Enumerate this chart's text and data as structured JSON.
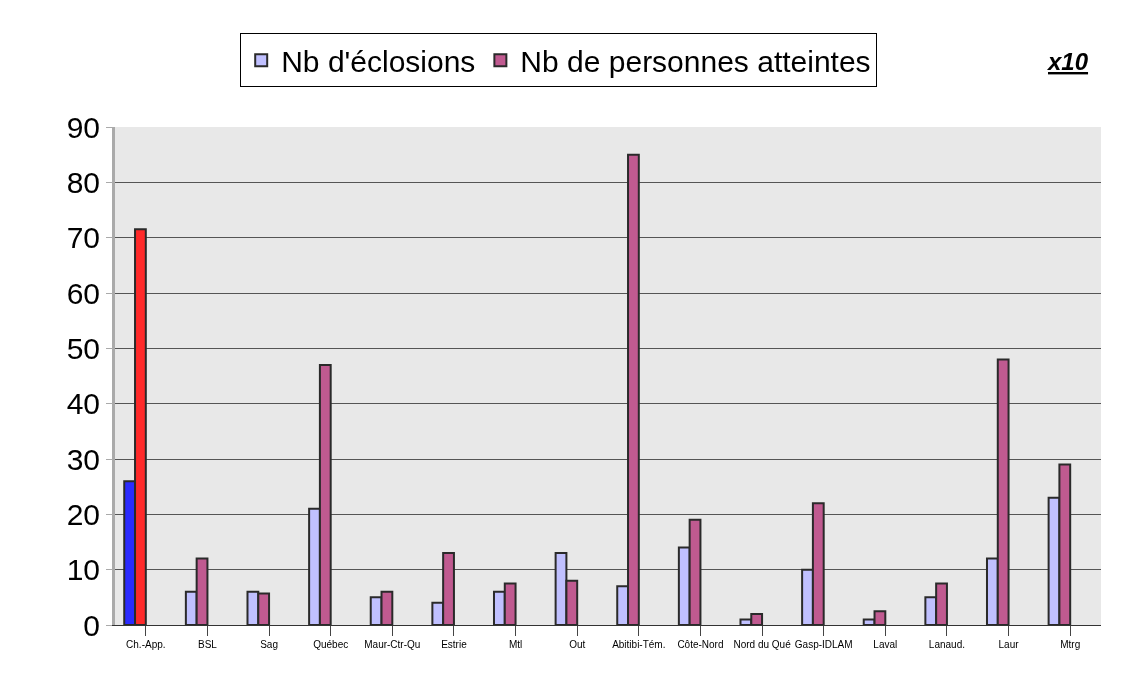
{
  "chart_data": {
    "type": "bar",
    "categories": [
      "Ch.-App.",
      "BSL",
      "Sag",
      "Québec",
      "Maur-Ctr-Qu",
      "Estrie",
      "Mtl",
      "Out",
      "Abitibi-Tém.",
      "Côte-Nord",
      "Nord du Qué",
      "Gasp-IDLAM",
      "Laval",
      "Lanaud.",
      "Laur",
      "Mtrg"
    ],
    "series": [
      {
        "name": "Nb d'éclosions",
        "color": "#c0c0ff",
        "colors": [
          "#2b2bff",
          "#c0c0ff",
          "#c0c0ff",
          "#c0c0ff",
          "#c0c0ff",
          "#c0c0ff",
          "#c0c0ff",
          "#c0c0ff",
          "#c0c0ff",
          "#c0c0ff",
          "#c0c0ff",
          "#c0c0ff",
          "#c0c0ff",
          "#c0c0ff",
          "#c0c0ff",
          "#c0c0ff"
        ],
        "values": [
          26,
          6,
          6,
          21,
          5,
          4,
          6,
          13,
          7,
          14,
          1,
          10,
          1,
          5,
          12,
          23
        ]
      },
      {
        "name": "Nb de personnes atteintes",
        "color": "#c05a90",
        "colors": [
          "#ff2a2a",
          "#c05a90",
          "#c05a90",
          "#c05a90",
          "#c05a90",
          "#c05a90",
          "#c05a90",
          "#c05a90",
          "#c05a90",
          "#c05a90",
          "#c05a90",
          "#c05a90",
          "#c05a90",
          "#c05a90",
          "#c05a90",
          "#c05a90"
        ],
        "values": [
          71.5,
          12,
          5.7,
          47,
          6,
          13,
          7.5,
          8,
          85,
          19,
          2,
          22,
          2.5,
          7.5,
          48,
          29
        ]
      }
    ],
    "ylim": [
      0,
      90
    ],
    "yticks": [
      0,
      10,
      20,
      30,
      40,
      50,
      60,
      70,
      80,
      90
    ],
    "grid": "y",
    "legend": "top",
    "annotations": [
      "x10"
    ]
  }
}
